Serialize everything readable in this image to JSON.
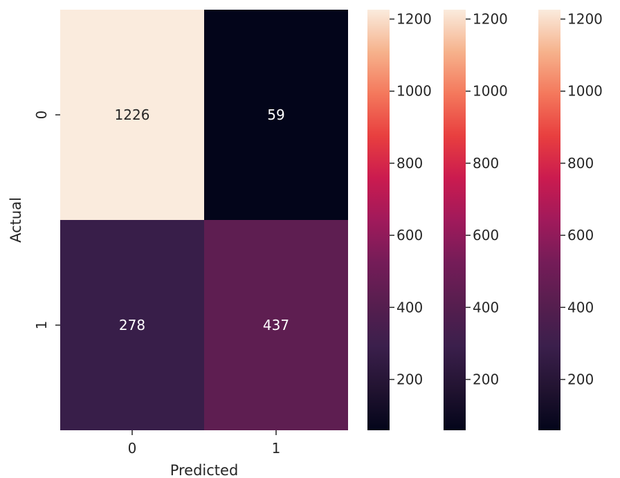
{
  "chart_data": {
    "type": "heatmap",
    "title": "",
    "xlabel": "Predicted",
    "ylabel": "Actual",
    "x_categories": [
      "0",
      "1"
    ],
    "y_categories": [
      "0",
      "1"
    ],
    "values": [
      [
        1226,
        59
      ],
      [
        278,
        437
      ]
    ],
    "colormap": "rocket",
    "color_range": [
      59,
      1226
    ],
    "colorbar_count": 3,
    "colorbar_ticks": [
      200,
      400,
      600,
      800,
      1000,
      1200
    ],
    "colorbar_tick_labels": [
      "200",
      "400",
      "600",
      "800",
      "1000",
      "1200"
    ],
    "annotation_colors": {
      "on_light": "#262626",
      "on_dark": "#ffffff"
    },
    "grid": false,
    "legend": "none"
  }
}
